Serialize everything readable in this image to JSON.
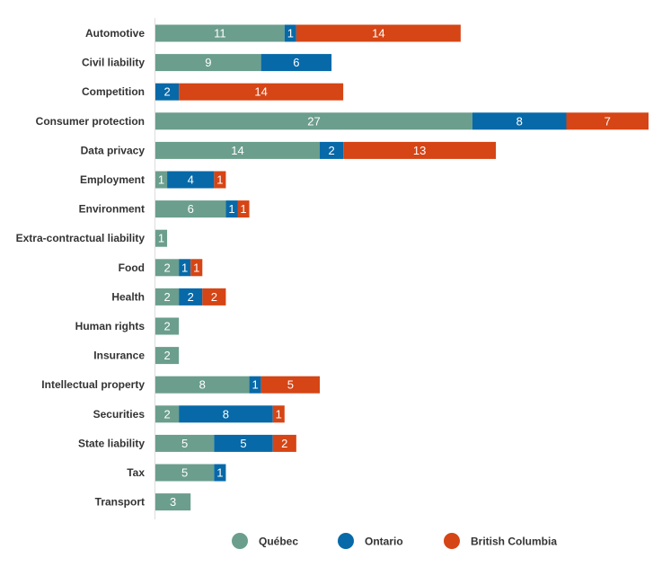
{
  "chart_data": {
    "type": "bar",
    "orientation": "horizontal",
    "stacked": true,
    "title": "",
    "xlabel": "",
    "ylabel": "",
    "xlim": [
      0,
      42
    ],
    "grid": false,
    "legend_position": "bottom",
    "categories": [
      "Automotive",
      "Civil liability",
      "Competition",
      "Consumer protection",
      "Data privacy",
      "Employment",
      "Environment",
      "Extra-contractual liability",
      "Food",
      "Health",
      "Human rights",
      "Insurance",
      "Intellectual property",
      "Securities",
      "State liability",
      "Tax",
      "Transport"
    ],
    "series": [
      {
        "name": "Québec",
        "color": "#6b9e8d",
        "values": [
          11,
          9,
          0,
          27,
          14,
          1,
          6,
          1,
          2,
          2,
          2,
          2,
          8,
          2,
          5,
          5,
          3
        ]
      },
      {
        "name": "Ontario",
        "color": "#0769a8",
        "values": [
          1,
          6,
          2,
          8,
          2,
          4,
          1,
          0,
          1,
          2,
          0,
          0,
          1,
          8,
          5,
          1,
          0
        ]
      },
      {
        "name": "British Columbia",
        "color": "#d64515",
        "values": [
          14,
          0,
          14,
          7,
          13,
          1,
          1,
          0,
          1,
          2,
          0,
          0,
          5,
          1,
          2,
          0,
          0
        ]
      }
    ]
  }
}
